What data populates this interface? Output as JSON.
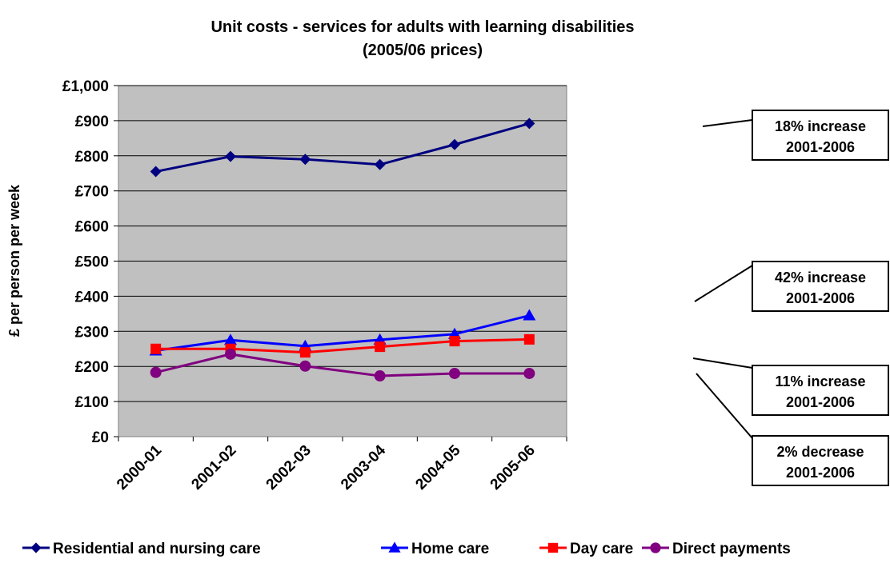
{
  "chart_data": {
    "type": "line",
    "title": "Unit costs - services for adults with learning disabilities",
    "subtitle": "(2005/06 prices)",
    "xlabel": "",
    "ylabel": "£ per person per week",
    "ylim": [
      0,
      1000
    ],
    "yticks": [
      "£0",
      "£100",
      "£200",
      "£300",
      "£400",
      "£500",
      "£600",
      "£700",
      "£800",
      "£900",
      "£1,000"
    ],
    "categories": [
      "2000-01",
      "2001-02",
      "2002-03",
      "2003-04",
      "2004-05",
      "2005-06"
    ],
    "grid": true,
    "legend_position": "bottom",
    "series": [
      {
        "name": "Residential and nursing care",
        "color": "#000080",
        "marker": "diamond",
        "values": [
          755,
          798,
          790,
          775,
          832,
          892
        ]
      },
      {
        "name": "Home care",
        "color": "#0000ff",
        "marker": "triangle",
        "values": [
          245,
          275,
          258,
          276,
          292,
          345
        ]
      },
      {
        "name": "Day care",
        "color": "#ff0000",
        "marker": "square",
        "values": [
          250,
          250,
          240,
          256,
          272,
          277
        ]
      },
      {
        "name": "Direct payments",
        "color": "#800080",
        "marker": "circle",
        "values": [
          183,
          235,
          201,
          173,
          180,
          180
        ]
      }
    ],
    "annotations": [
      {
        "line1": "18% increase",
        "line2": "2001-2006"
      },
      {
        "line1": "42% increase",
        "line2": "2001-2006"
      },
      {
        "line1": "11% increase",
        "line2": "2001-2006"
      },
      {
        "line1": "2% decrease",
        "line2": "2001-2006"
      }
    ]
  }
}
